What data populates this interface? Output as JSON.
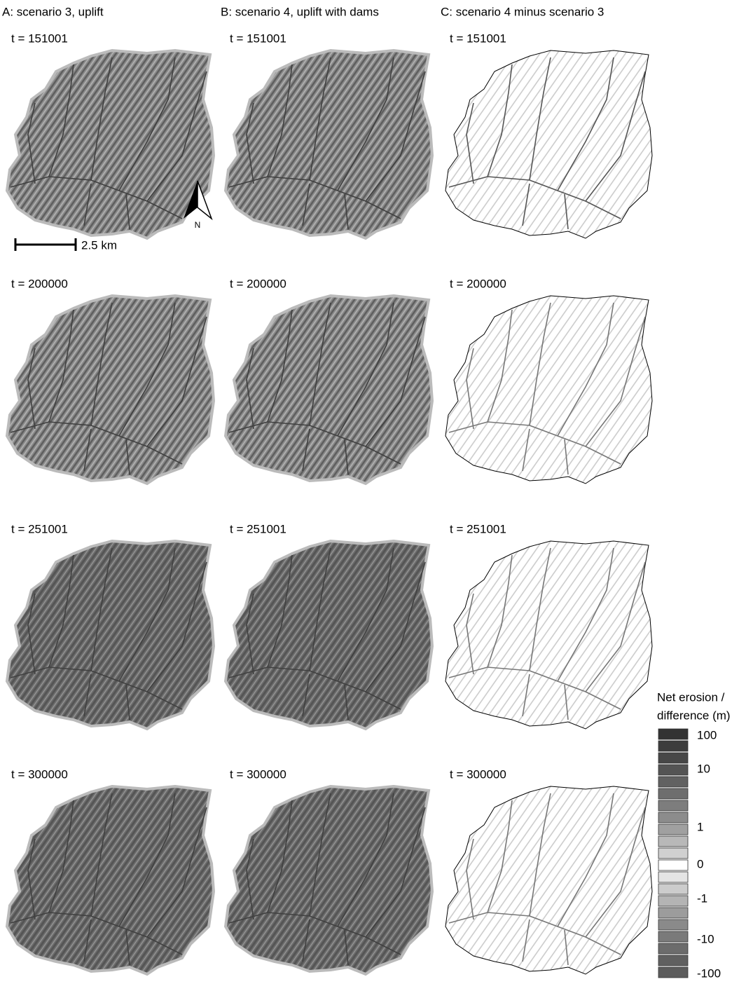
{
  "columns": [
    {
      "title": "A: scenario 3, uplift",
      "panels": [
        "t = 151001",
        "t = 200000",
        "t = 251001",
        "t = 300000"
      ]
    },
    {
      "title": "B: scenario 4, uplift with dams",
      "panels": [
        "t = 151001",
        "t = 200000",
        "t = 251001",
        "t = 300000"
      ]
    },
    {
      "title": "C: scenario 4 minus scenario 3",
      "panels": [
        "t = 151001",
        "t = 200000",
        "t = 251001",
        "t = 300000"
      ]
    }
  ],
  "scale_bar": "2.5 km",
  "north_arrow": "N",
  "legend": {
    "title": [
      "Net erosion /",
      "difference (m)"
    ],
    "swatches": [
      "#333333",
      "#3d3d3d",
      "#474747",
      "#545454",
      "#616161",
      "#6e6e6e",
      "#7d7d7d",
      "#8c8c8c",
      "#a0a0a0",
      "#b8b8b8",
      "#d0d0d0",
      "#ffffff",
      "#e4e4e4",
      "#cccccc",
      "#b4b4b4",
      "#9c9c9c",
      "#8a8a8a",
      "#7a7a7a",
      "#6c6c6c",
      "#606060",
      "#5c5c5c"
    ],
    "labels": [
      "100",
      "10",
      "1",
      "0",
      "-1",
      "-10",
      "-100"
    ]
  }
}
